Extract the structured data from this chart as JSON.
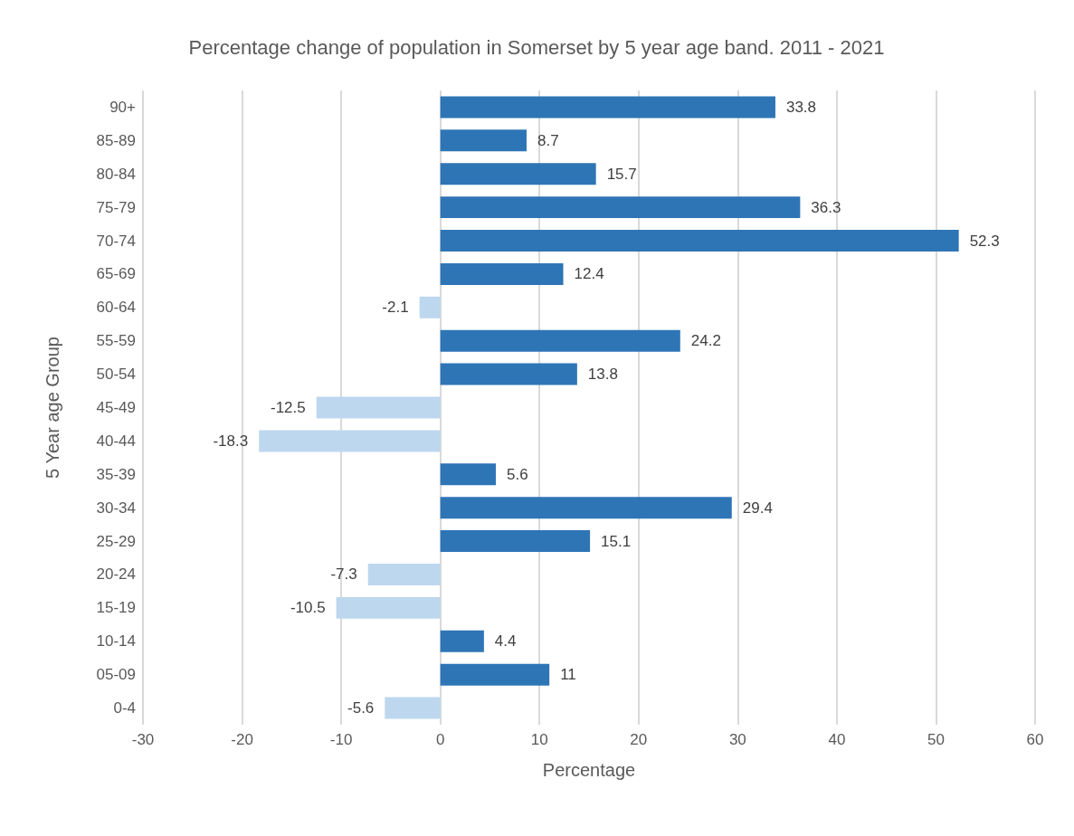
{
  "chart_data": {
    "type": "bar",
    "orientation": "horizontal",
    "title": "Percentage change of population in Somerset by 5 year age band. 2011 - 2021",
    "xlabel": "Percentage",
    "ylabel": "5 Year age Group",
    "categories": [
      "90+",
      "85-89",
      "80-84",
      "75-79",
      "70-74",
      "65-69",
      "60-64",
      "55-59",
      "50-54",
      "45-49",
      "40-44",
      "35-39",
      "30-34",
      "25-29",
      "20-24",
      "15-19",
      "10-14",
      "05-09",
      "0-4"
    ],
    "values": [
      33.8,
      8.7,
      15.7,
      36.3,
      52.3,
      12.4,
      -2.1,
      24.2,
      13.8,
      -12.5,
      -18.3,
      5.6,
      29.4,
      15.1,
      -7.3,
      -10.5,
      4.4,
      11,
      -5.6
    ],
    "colors": [
      "#2e75b6",
      "#2e75b6",
      "#2e75b6",
      "#2e75b6",
      "#2e75b6",
      "#2e75b6",
      "#bdd7ee",
      "#2e75b6",
      "#2e75b6",
      "#bdd7ee",
      "#bdd7ee",
      "#2e75b6",
      "#2e75b6",
      "#2e75b6",
      "#bdd7ee",
      "#bdd7ee",
      "#2e75b6",
      "#2e75b6",
      "#bdd7ee"
    ],
    "xlim": [
      -30,
      60
    ],
    "xticks": [
      -30,
      -20,
      -10,
      0,
      10,
      20,
      30,
      40,
      50,
      60
    ],
    "grid": "x",
    "data_labels": true
  }
}
